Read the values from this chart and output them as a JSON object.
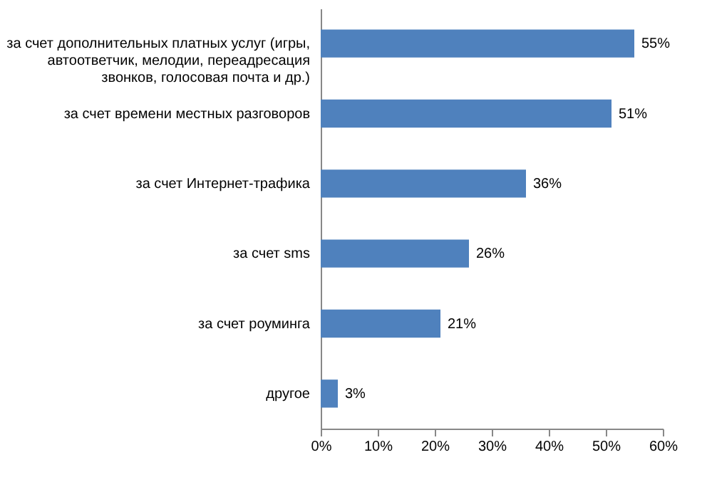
{
  "chart_data": {
    "type": "bar",
    "orientation": "horizontal",
    "categories": [
      "за счет дополнительных платных услуг (игры, автоответчик, мелодии, переадресация звонков, голосовая почта и др.)",
      "за счет времени местных разговоров",
      "за счет Интернет-трафика",
      "за счет sms",
      "за счет роуминга",
      "другое"
    ],
    "values": [
      55,
      51,
      36,
      26,
      21,
      3
    ],
    "value_labels": [
      "55%",
      "51%",
      "36%",
      "26%",
      "21%",
      "3%"
    ],
    "color": "#4f81bd",
    "xlim": [
      0,
      60
    ],
    "xticks": [
      {
        "value": 0,
        "label": "0%"
      },
      {
        "value": 10,
        "label": "10%"
      },
      {
        "value": 20,
        "label": "20%"
      },
      {
        "value": 30,
        "label": "30%"
      },
      {
        "value": 40,
        "label": "40%"
      },
      {
        "value": 50,
        "label": "50%"
      },
      {
        "value": 60,
        "label": "60%"
      }
    ],
    "grid": false
  }
}
